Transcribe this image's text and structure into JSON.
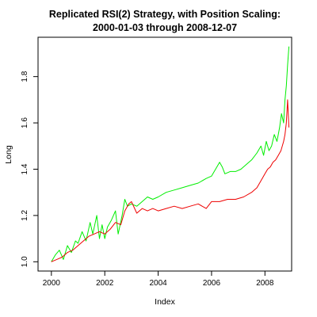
{
  "chart_data": {
    "type": "line",
    "title": "Replicated RSI(2) Strategy, with Position Scaling:",
    "subtitle": "2000-01-03 through 2008-12-07",
    "xlabel": "Index",
    "ylabel": "Long",
    "xlim": [
      1999.5,
      2009.0
    ],
    "ylim": [
      0.96,
      1.97
    ],
    "x_ticks": [
      2000,
      2002,
      2004,
      2006,
      2008
    ],
    "x_tick_labels": [
      "2000",
      "2002",
      "2004",
      "2006",
      "2008"
    ],
    "y_ticks": [
      1.0,
      1.2,
      1.4,
      1.6,
      1.8
    ],
    "y_tick_labels": [
      "1.0",
      "1.2",
      "1.4",
      "1.6",
      "1.8"
    ],
    "grid": false,
    "series": [
      {
        "color": "#00ee00",
        "x": [
          2000.0,
          2000.15,
          2000.3,
          2000.45,
          2000.6,
          2000.75,
          2000.9,
          2001.0,
          2001.15,
          2001.3,
          2001.45,
          2001.55,
          2001.7,
          2001.8,
          2001.9,
          2002.0,
          2002.1,
          2002.25,
          2002.4,
          2002.5,
          2002.65,
          2002.75,
          2002.85,
          2003.0,
          2003.2,
          2003.4,
          2003.6,
          2003.8,
          2004.0,
          2004.3,
          2004.6,
          2004.9,
          2005.2,
          2005.5,
          2005.8,
          2006.0,
          2006.15,
          2006.3,
          2006.4,
          2006.5,
          2006.7,
          2006.9,
          2007.1,
          2007.3,
          2007.5,
          2007.7,
          2007.85,
          2007.95,
          2008.05,
          2008.15,
          2008.25,
          2008.35,
          2008.45,
          2008.55,
          2008.62,
          2008.7,
          2008.75,
          2008.8,
          2008.85,
          2008.9
        ],
        "values": [
          1.0,
          1.03,
          1.05,
          1.01,
          1.07,
          1.04,
          1.09,
          1.08,
          1.13,
          1.09,
          1.17,
          1.12,
          1.2,
          1.1,
          1.16,
          1.1,
          1.15,
          1.18,
          1.22,
          1.12,
          1.2,
          1.27,
          1.24,
          1.25,
          1.24,
          1.26,
          1.28,
          1.27,
          1.28,
          1.3,
          1.31,
          1.32,
          1.33,
          1.34,
          1.36,
          1.37,
          1.4,
          1.43,
          1.41,
          1.38,
          1.39,
          1.39,
          1.4,
          1.42,
          1.44,
          1.47,
          1.5,
          1.46,
          1.52,
          1.48,
          1.5,
          1.55,
          1.52,
          1.58,
          1.64,
          1.6,
          1.7,
          1.76,
          1.85,
          1.93
        ]
      },
      {
        "color": "#ee0000",
        "x": [
          2000.0,
          2000.2,
          2000.4,
          2000.6,
          2000.8,
          2001.0,
          2001.2,
          2001.4,
          2001.6,
          2001.8,
          2002.0,
          2002.2,
          2002.4,
          2002.6,
          2002.75,
          2002.9,
          2003.0,
          2003.2,
          2003.4,
          2003.6,
          2003.8,
          2004.0,
          2004.3,
          2004.6,
          2004.9,
          2005.2,
          2005.5,
          2005.8,
          2006.0,
          2006.3,
          2006.6,
          2006.9,
          2007.2,
          2007.5,
          2007.7,
          2007.9,
          2008.0,
          2008.1,
          2008.2,
          2008.3,
          2008.4,
          2008.5,
          2008.6,
          2008.7,
          2008.75,
          2008.8,
          2008.85,
          2008.9
        ],
        "values": [
          1.0,
          1.01,
          1.02,
          1.04,
          1.05,
          1.07,
          1.09,
          1.11,
          1.12,
          1.13,
          1.12,
          1.14,
          1.17,
          1.16,
          1.22,
          1.25,
          1.26,
          1.21,
          1.23,
          1.22,
          1.23,
          1.22,
          1.23,
          1.24,
          1.23,
          1.24,
          1.25,
          1.23,
          1.26,
          1.26,
          1.27,
          1.27,
          1.28,
          1.3,
          1.32,
          1.36,
          1.38,
          1.4,
          1.41,
          1.43,
          1.44,
          1.46,
          1.48,
          1.52,
          1.55,
          1.6,
          1.7,
          1.58
        ]
      }
    ]
  }
}
